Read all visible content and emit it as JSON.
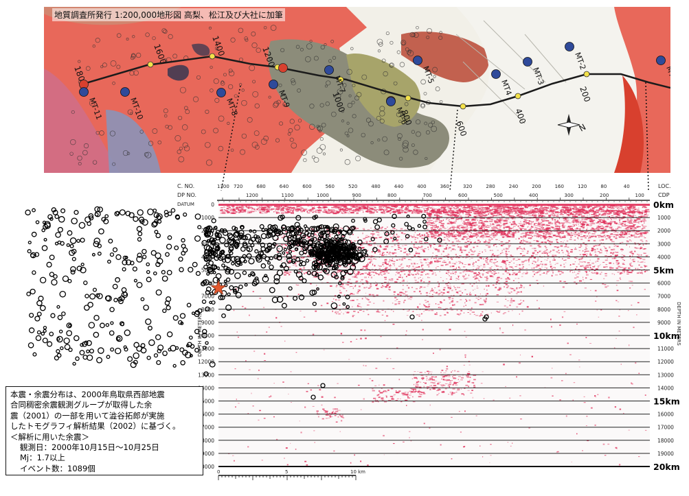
{
  "map": {
    "caption": "地質調査所発行 1:200,000地形図 高梨、松江及び大社に加筆",
    "route_distance_labels": [
      "1800",
      "1600",
      "1400",
      "1200",
      "1000",
      "800",
      "600",
      "400",
      "200"
    ],
    "stations": [
      "MT-1",
      "MT-2",
      "MT-3",
      "MT4",
      "MT-5",
      "MT-6",
      "MT-7",
      "MT-8",
      "MT-9",
      "MT-10",
      "MT-11"
    ],
    "compass_label": "N",
    "colors": {
      "red_unit": "#e8685a",
      "grey_unit": "#8c8c7a",
      "olive_unit": "#a7a46a",
      "station_blue": "#2f4a9a",
      "station_red": "#d8402e",
      "route_node": "#f4e24a"
    }
  },
  "section": {
    "cno_label": "C. NO.",
    "cdp_label": "DP NO.",
    "loc_label": "LOC.",
    "cdp_right_label": "CDP",
    "datum_label": "DATUM",
    "cno_ticks": [
      "1300",
      "720",
      "680",
      "640",
      "600",
      "560",
      "520",
      "480",
      "440",
      "400",
      "360",
      "320",
      "280",
      "240",
      "200",
      "160",
      "120",
      "80",
      "40"
    ],
    "cdp_ticks": [
      "1200",
      "1100",
      "1000",
      "900",
      "800",
      "700",
      "600",
      "500",
      "400",
      "300",
      "200",
      "100"
    ],
    "depth_ticks": [
      "0",
      "1000",
      "2000",
      "3000",
      "4000",
      "5000",
      "6000",
      "7000",
      "8000",
      "9000",
      "10000",
      "11000",
      "12000",
      "13000",
      "14000",
      "15000",
      "16000",
      "17000",
      "18000",
      "19000",
      "20000"
    ],
    "right_depth_ticks": [
      "1000",
      "2000",
      "3000",
      "4000",
      "6000",
      "7000",
      "8000",
      "9000",
      "11000",
      "12000",
      "13000",
      "14000",
      "16000",
      "17000",
      "18000",
      "19000"
    ],
    "km_labels": [
      "0km",
      "5km",
      "10km",
      "15km",
      "20km"
    ],
    "depth_axis_label": "DEPTH IN METERS",
    "scale_labels": [
      "0",
      "5",
      "10 km"
    ],
    "reflection_color": "#e0305a",
    "mainshock_color": "#e2582e"
  },
  "note": {
    "lines": [
      "本震・余震分布は、2000年鳥取県西部地震",
      "合同稠密余震観測グループが取得した余",
      "震（2001）の一部を用いて澁谷拓郎が実施",
      "したトモグラフィ解析結果（2002）に基づく。",
      "＜解析に用いた余震＞"
    ],
    "obs_label": "観測日：",
    "obs_value": "2000年10月15日～10月25日",
    "mj_label": "Mj",
    "mj_value": "：1.7以上",
    "events_label": "イベント数",
    "events_value": "：1089個"
  }
}
